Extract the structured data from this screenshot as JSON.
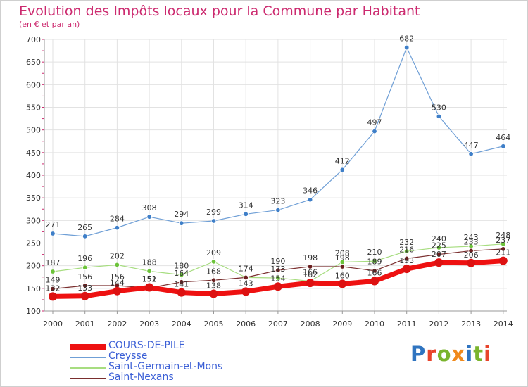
{
  "title": "Evolution des Impôts locaux pour la Commune par Habitant",
  "subtitle": "(en € et par an)",
  "brand": {
    "text": "Proxiti",
    "colors": [
      "#2f74c0",
      "#e8442b",
      "#7ab42d",
      "#f08a1c",
      "#2f74c0",
      "#7ab42d",
      "#e8442b"
    ]
  },
  "chart_data": {
    "type": "line",
    "ylim": [
      100,
      700
    ],
    "yticks": [
      100,
      150,
      200,
      250,
      300,
      350,
      400,
      450,
      500,
      550,
      600,
      650,
      700
    ],
    "x": [
      "2000",
      "2001",
      "2002",
      "2003",
      "2004",
      "2005",
      "2006",
      "2007",
      "2008",
      "2009",
      "2010",
      "2011",
      "2012",
      "2013",
      "2014"
    ],
    "grid": true,
    "legend_position": "bottom-left",
    "series": [
      {
        "name": "COURS-DE-PILE",
        "color": "#ee1111",
        "marker": "#dd1111",
        "width": 7,
        "values": [
          132,
          133,
          144,
          152,
          141,
          138,
          143,
          154,
          162,
          160,
          166,
          193,
          207,
          206,
          211
        ],
        "labels": [
          "132",
          "133",
          "144",
          "152",
          "141",
          "138",
          "143",
          "154",
          "162",
          "160",
          "166",
          "193",
          "207",
          "206",
          "211"
        ]
      },
      {
        "name": "Creysse",
        "color": "#6f9fd6",
        "marker": "#3f7fc8",
        "width": 1.2,
        "values": [
          271,
          265,
          284,
          308,
          294,
          299,
          314,
          323,
          346,
          412,
          497,
          682,
          530,
          447,
          464
        ],
        "labels": [
          "271",
          "265",
          "284",
          "308",
          "294",
          "299",
          "314",
          "323",
          "346",
          "412",
          "497",
          "682",
          "530",
          "447",
          "464"
        ]
      },
      {
        "name": "Saint-Germain-et-Mons",
        "color": "#a7dd80",
        "marker": "#6cc33a",
        "width": 1.2,
        "values": [
          187,
          196,
          202,
          188,
          180,
          209,
          174,
          173,
          166,
          208,
          210,
          232,
          240,
          243,
          248
        ],
        "labels": [
          "187",
          "196",
          "202",
          "188",
          "180",
          "209",
          "174",
          "173",
          "166",
          "208",
          "210",
          "232",
          "240",
          "243",
          "248"
        ]
      },
      {
        "name": "Saint-Nexans",
        "color": "#7a2e2e",
        "marker": "#6a1f1f",
        "width": 1.2,
        "values": [
          149,
          156,
          156,
          151,
          164,
          168,
          174,
          190,
          198,
          198,
          189,
          216,
          225,
          233,
          237
        ],
        "labels": [
          "149",
          "156",
          "156",
          "151",
          "164",
          "168",
          "174",
          "190",
          "198",
          "198",
          "189",
          "216",
          "225",
          "233",
          "237"
        ]
      }
    ]
  }
}
